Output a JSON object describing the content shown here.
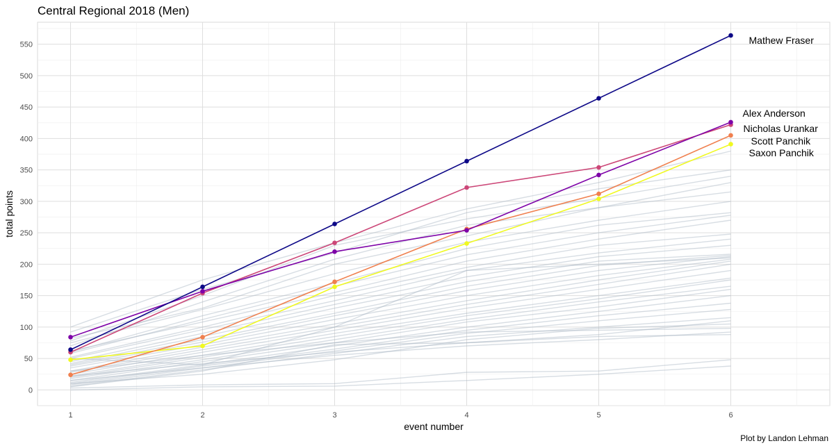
{
  "chart_data": {
    "type": "line",
    "title": "Central Regional 2018 (Men)",
    "xlabel": "event number",
    "ylabel": "total points",
    "caption": "Plot by Landon Lehman",
    "x": [
      1,
      2,
      3,
      4,
      5,
      6
    ],
    "xlim": [
      0.75,
      6.75
    ],
    "ylim": [
      -25,
      585
    ],
    "x_ticks": [
      "1",
      "2",
      "3",
      "4",
      "5",
      "6"
    ],
    "y_ticks": [
      "0",
      "50",
      "100",
      "150",
      "200",
      "250",
      "300",
      "350",
      "400",
      "450",
      "500",
      "550"
    ],
    "grid": true,
    "highlight_series": [
      {
        "name": "Mathew Fraser",
        "color": "#0d0887",
        "values": [
          64,
          164,
          264,
          364,
          464,
          564
        ]
      },
      {
        "name": "Alex Anderson",
        "color": "#7e03a8",
        "values": [
          84,
          157,
          220,
          254,
          342,
          426
        ]
      },
      {
        "name": "Nicholas Urankar",
        "color": "#cc4778",
        "values": [
          60,
          154,
          234,
          322,
          354,
          422
        ]
      },
      {
        "name": "Scott Panchik",
        "color": "#f0804f",
        "values": [
          24,
          84,
          172,
          256,
          312,
          405
        ]
      },
      {
        "name": "Saxon Panchik",
        "color": "#f0f921",
        "values": [
          48,
          70,
          164,
          233,
          304,
          391
        ]
      }
    ],
    "background_series_color": "#a7b4c2",
    "background_series": [
      [
        100,
        175,
        234,
        288,
        330,
        380
      ],
      [
        92,
        160,
        218,
        282,
        320,
        350
      ],
      [
        78,
        150,
        230,
        272,
        305,
        340
      ],
      [
        70,
        140,
        208,
        262,
        290,
        330
      ],
      [
        82,
        130,
        200,
        245,
        290,
        315
      ],
      [
        75,
        128,
        185,
        235,
        270,
        300
      ],
      [
        60,
        118,
        170,
        225,
        262,
        282
      ],
      [
        58,
        112,
        165,
        215,
        250,
        278
      ],
      [
        62,
        108,
        155,
        205,
        240,
        270
      ],
      [
        52,
        100,
        150,
        195,
        230,
        248
      ],
      [
        50,
        96,
        142,
        190,
        218,
        240
      ],
      [
        45,
        90,
        136,
        180,
        212,
        230
      ],
      [
        42,
        85,
        130,
        172,
        205,
        216
      ],
      [
        40,
        80,
        122,
        165,
        198,
        214
      ],
      [
        38,
        76,
        118,
        158,
        190,
        212
      ],
      [
        35,
        72,
        112,
        150,
        182,
        208
      ],
      [
        30,
        68,
        105,
        142,
        175,
        205
      ],
      [
        28,
        64,
        100,
        136,
        168,
        200
      ],
      [
        25,
        60,
        95,
        130,
        160,
        190
      ],
      [
        22,
        55,
        90,
        122,
        150,
        178
      ],
      [
        20,
        52,
        85,
        118,
        145,
        175
      ],
      [
        18,
        48,
        80,
        112,
        140,
        165
      ],
      [
        15,
        45,
        75,
        108,
        132,
        160
      ],
      [
        12,
        40,
        70,
        100,
        125,
        150
      ],
      [
        10,
        38,
        65,
        95,
        118,
        138
      ],
      [
        8,
        35,
        62,
        90,
        110,
        128
      ],
      [
        6,
        32,
        58,
        85,
        100,
        115
      ],
      [
        5,
        30,
        72,
        75,
        88,
        110
      ],
      [
        30,
        55,
        75,
        92,
        95,
        98
      ],
      [
        22,
        42,
        60,
        75,
        85,
        88
      ],
      [
        15,
        35,
        55,
        70,
        80,
        92
      ],
      [
        10,
        25,
        48,
        80,
        98,
        105
      ],
      [
        3,
        8,
        10,
        28,
        30,
        48
      ],
      [
        0,
        5,
        6,
        15,
        25,
        38
      ],
      [
        50,
        40,
        100,
        190,
        200,
        210
      ]
    ]
  }
}
